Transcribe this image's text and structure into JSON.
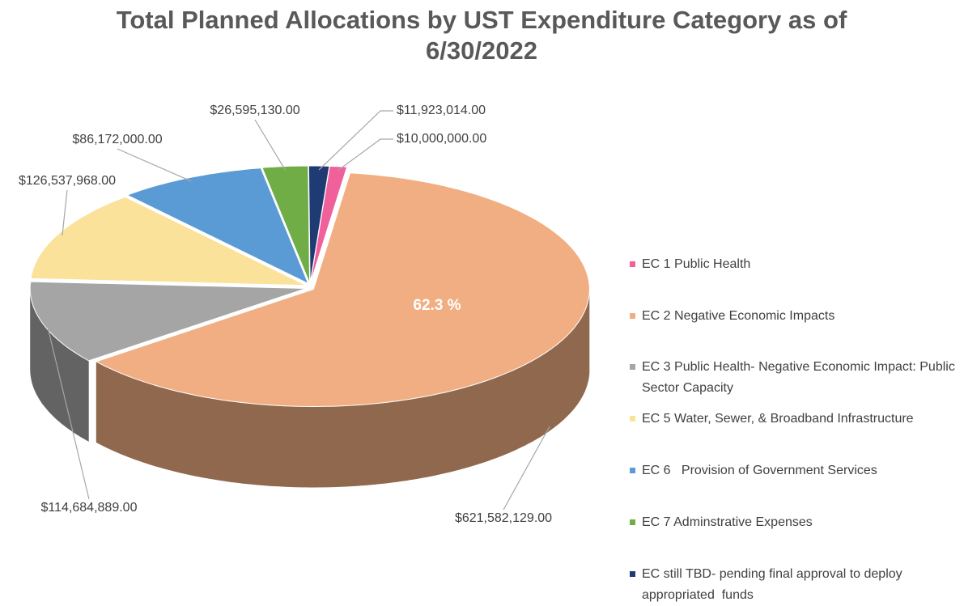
{
  "chart_data": {
    "type": "pie3d",
    "title": "Total Planned Allocations by UST Expenditure Category as of 6/30/2022",
    "categories": [
      "EC 1 Public Health",
      "EC 2 Negative Economic Impacts",
      "EC 3 Public Health- Negative Economic Impact: Public Sector Capacity",
      "EC 5 Water, Sewer, & Broadband Infrastructure",
      "EC 6   Provision of Government Services",
      "EC 7 Adminstrative Expenses",
      "EC still TBD- pending final approval to deploy appropriated  funds"
    ],
    "values": [
      10000000,
      621582129,
      114684889,
      126537968,
      86172000,
      26595130,
      11923014
    ],
    "value_labels": [
      "$10,000,000.00",
      "$621,582,129.00",
      "$114,684,889.00",
      "$126,537,968.00",
      "$86,172,000.00",
      "$26,595,130.00",
      "$11,923,014.00"
    ],
    "colors": [
      "#f0609a",
      "#f0ae82",
      "#a5a5a5",
      "#fae29a",
      "#5b9bd5",
      "#70ad47",
      "#1f3b73"
    ],
    "annotation": "62.3 %",
    "legend": "right"
  }
}
